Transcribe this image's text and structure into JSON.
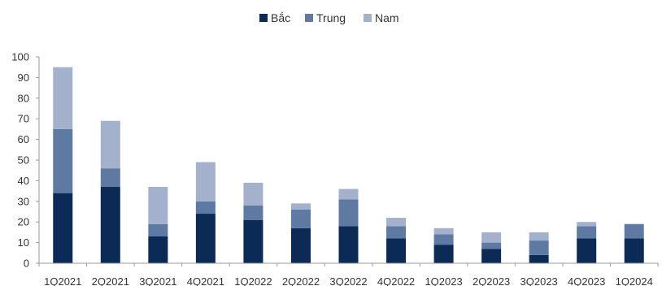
{
  "chart_data": {
    "type": "bar",
    "stacked": true,
    "title": "",
    "xlabel": "",
    "ylabel": "",
    "ylim": [
      0,
      100
    ],
    "yticks": [
      0,
      10,
      20,
      30,
      40,
      50,
      60,
      70,
      80,
      90,
      100
    ],
    "grid": false,
    "legend_position": "top-center",
    "categories": [
      "1Q2021",
      "2Q2021",
      "3Q2021",
      "4Q2021",
      "1Q2022",
      "2Q2022",
      "3Q2022",
      "4Q2022",
      "1Q2023",
      "2Q2023",
      "3Q2023",
      "4Q2023",
      "1Q2024"
    ],
    "series": [
      {
        "name": "Bắc",
        "color": "#0b2a55",
        "values": [
          34,
          37,
          13,
          24,
          21,
          17,
          18,
          12,
          9,
          7,
          4,
          12,
          12
        ]
      },
      {
        "name": "Trung",
        "color": "#5e7aa3",
        "values": [
          31,
          9,
          6,
          6,
          7,
          9,
          13,
          6,
          5,
          3,
          7,
          6,
          7
        ]
      },
      {
        "name": "Nam",
        "color": "#a3b1cc",
        "values": [
          30,
          23,
          18,
          19,
          11,
          3,
          5,
          4,
          3,
          5,
          4,
          2,
          0
        ]
      }
    ]
  }
}
